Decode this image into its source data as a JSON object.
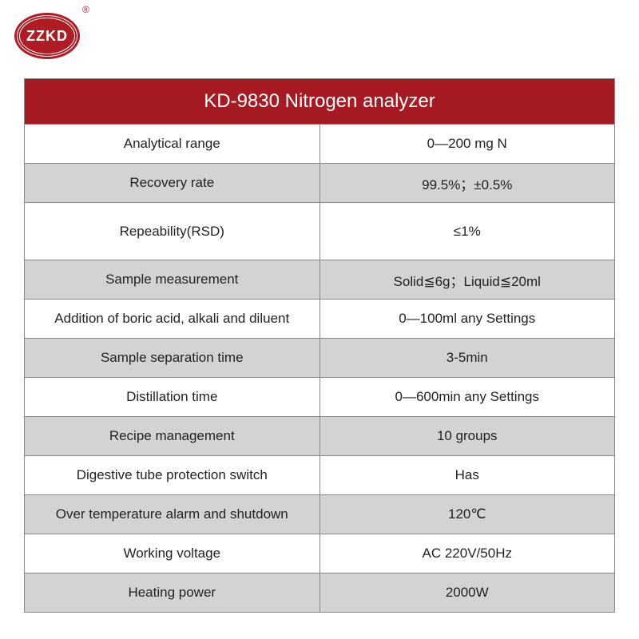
{
  "logo": {
    "text": "ZZKD",
    "registered": "®"
  },
  "table": {
    "title": "KD-9830 Nitrogen analyzer",
    "header_bg": "#a61b22",
    "header_color": "#ffffff",
    "row_white": "#ffffff",
    "row_gray": "#d3d3d3",
    "border_color": "#888888",
    "rows": [
      {
        "label": "Analytical range",
        "value": "0—200 mg N",
        "bg": "white"
      },
      {
        "label": "Recovery rate",
        "value": "99.5%；±0.5%",
        "bg": "gray"
      },
      {
        "label": "Repeability(RSD)",
        "value": "≤1%",
        "bg": "white",
        "tall": true
      },
      {
        "label": "Sample measurement",
        "value": "Solid≦6g；Liquid≦20ml",
        "bg": "gray"
      },
      {
        "label": "Addition of boric acid, alkali and diluent",
        "value": "0—100ml any Settings",
        "bg": "white"
      },
      {
        "label": "Sample separation time",
        "value": "3-5min",
        "bg": "gray"
      },
      {
        "label": "Distillation time",
        "value": "0—600min any Settings",
        "bg": "white"
      },
      {
        "label": "Recipe management",
        "value": "10 groups",
        "bg": "gray"
      },
      {
        "label": "Digestive tube protection switch",
        "value": "Has",
        "bg": "white"
      },
      {
        "label": "Over temperature alarm and shutdown",
        "value": "120℃",
        "bg": "gray"
      },
      {
        "label": "Working voltage",
        "value": "AC 220V/50Hz",
        "bg": "white"
      },
      {
        "label": "Heating power",
        "value": "2000W",
        "bg": "gray"
      }
    ]
  }
}
